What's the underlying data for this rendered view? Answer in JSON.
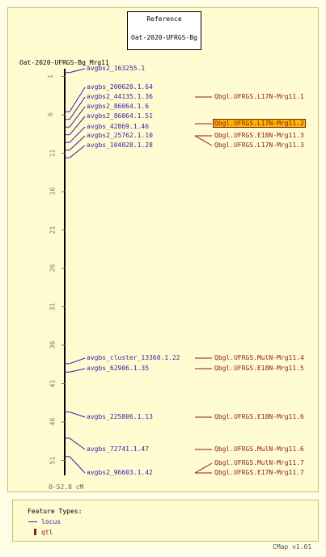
{
  "reference": {
    "title": "Reference",
    "map_set": "Oat-2020-UFRGS-Bg"
  },
  "map": {
    "name": "Oat-2020-UFRGS-Bg_Mrg11",
    "range_label": "0-52.8 cM"
  },
  "ticks": [
    "1",
    "6",
    "11",
    "16",
    "21",
    "26",
    "31",
    "36",
    "41",
    "46",
    "51"
  ],
  "loci": [
    {
      "label": "avgbs2_163255.1",
      "pos": 0.5
    },
    {
      "label": "avgbs_200620.1.64",
      "pos": 5.6
    },
    {
      "label": "avgbs2_44135.1.36",
      "pos": 6.6
    },
    {
      "label": "avgbs2_86064.1.6",
      "pos": 7.6
    },
    {
      "label": "avgbs2_86064.1.51",
      "pos": 8.6
    },
    {
      "label": "avgbs_42869.1.46",
      "pos": 9.6
    },
    {
      "label": "avgbs2_25762.1.10",
      "pos": 10.6
    },
    {
      "label": "avgbs_104028.1.28",
      "pos": 11.6
    },
    {
      "label": "avgbs_cluster_13360.1.22",
      "pos": 38.4
    },
    {
      "label": "avgbs_62906.1.35",
      "pos": 39.5
    },
    {
      "label": "avgbs_225806.1.13",
      "pos": 44.7
    },
    {
      "label": "avgbs_72741.1.47",
      "pos": 48.1
    },
    {
      "label": "avgbs2_96603.1.42",
      "pos": 50.5
    }
  ],
  "qtls": [
    {
      "label": "Qbgl.UFRGS.L17N-Mrg11.1",
      "highlight": false
    },
    {
      "label": "Qbgl.UFRGS.L17N-Mrg11.2",
      "highlight": true
    },
    {
      "label": "Qbgl.UFRGS.E18N-Mrg11.3",
      "highlight": false
    },
    {
      "label": "Qbgl.UFRGS.L17N-Mrg11.3",
      "highlight": false
    },
    {
      "label": "Qbgl.UFRGS.MulN-Mrg11.4",
      "highlight": false
    },
    {
      "label": "Qbgl.UFRGS.E18N-Mrg11.5",
      "highlight": false
    },
    {
      "label": "Qbgl.UFRGS.E18N-Mrg11.6",
      "highlight": false
    },
    {
      "label": "Qbgl.UFRGS.MulN-Mrg11.6",
      "highlight": false
    },
    {
      "label": "Qbgl.UFRGS.MulN-Mrg11.7",
      "highlight": false
    },
    {
      "label": "Qbgl.UFRGS.E17N-Mrg11.7",
      "highlight": false
    }
  ],
  "legend": {
    "title": "Feature Types:",
    "items": [
      {
        "label": "locus"
      },
      {
        "label": "qtl"
      }
    ]
  },
  "footer": {
    "version": "CMap v1.01"
  },
  "colors": {
    "locus": "#3b1bb2",
    "qtl": "#8b1a1a",
    "highlight": "#f5b800",
    "axis": "#000000"
  }
}
